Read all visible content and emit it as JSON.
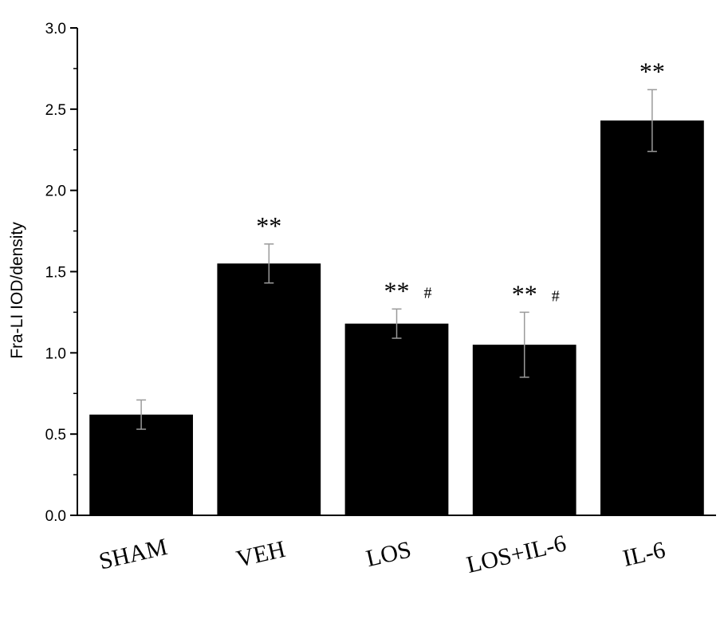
{
  "chart_data": {
    "type": "bar",
    "title": "",
    "xlabel": "",
    "ylabel": "Fra-LI IOD/density",
    "ylim": [
      0,
      3.0
    ],
    "yticks": [
      "0.0",
      "0.5",
      "1.0",
      "1.5",
      "2.0",
      "2.5",
      "3.0"
    ],
    "categories": [
      "SHAM",
      "VEH",
      "LOS",
      "LOS+IL-6",
      "IL-6"
    ],
    "values": [
      0.62,
      1.55,
      1.18,
      1.05,
      2.43
    ],
    "errors": [
      0.09,
      0.12,
      0.09,
      0.2,
      0.19
    ],
    "significance": [
      "",
      "**",
      "**",
      "**",
      "**"
    ],
    "significance_hash": [
      "",
      "",
      "#",
      "#",
      ""
    ],
    "bar_color": "#000000",
    "grid": false,
    "legend": "none"
  }
}
